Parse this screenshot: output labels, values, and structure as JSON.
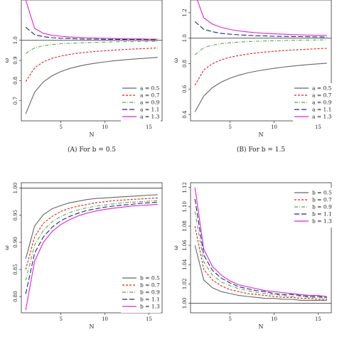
{
  "chart_data": [
    {
      "id": "A",
      "type": "line",
      "caption": "(A) For b = 0.5",
      "xlabel": "N",
      "ylabel": "ω",
      "xlim": [
        0.5,
        16.5
      ],
      "ylim": [
        0.6,
        1.2
      ],
      "xticks": [
        5,
        10,
        15
      ],
      "yticks": [
        0.7,
        0.8,
        0.9,
        1.0
      ],
      "ytick_labels": [
        "0.7",
        "0.8",
        "0.9",
        "1.0"
      ],
      "hline": 1.0,
      "legend": "bottom-right",
      "x": [
        1,
        2,
        3,
        4,
        5,
        6,
        7,
        8,
        9,
        10,
        11,
        12,
        13,
        14,
        15,
        16
      ],
      "series": [
        {
          "name": "a = 0.5",
          "color": "#666666",
          "dash": "solid",
          "values": [
            0.635,
            0.742,
            0.793,
            0.824,
            0.845,
            0.86,
            0.871,
            0.88,
            0.887,
            0.893,
            0.898,
            0.902,
            0.906,
            0.909,
            0.912,
            0.915
          ]
        },
        {
          "name": "a = 0.7",
          "color": "#e41a1c",
          "dash": "dashed",
          "values": [
            0.795,
            0.863,
            0.893,
            0.911,
            0.922,
            0.93,
            0.936,
            0.941,
            0.945,
            0.948,
            0.951,
            0.954,
            0.956,
            0.958,
            0.96,
            0.962
          ]
        },
        {
          "name": "a = 0.9",
          "color": "#4daf4a",
          "dash": "dotdash",
          "values": [
            0.935,
            0.962,
            0.973,
            0.979,
            0.983,
            0.985,
            0.987,
            0.989,
            0.99,
            0.991,
            0.992,
            0.993,
            0.993,
            0.994,
            0.994,
            0.995
          ]
        },
        {
          "name": "a = 1.1",
          "color": "#1f2a7a",
          "dash": "longdash",
          "values": [
            1.065,
            1.028,
            1.018,
            1.013,
            1.01,
            1.009,
            1.007,
            1.006,
            1.006,
            1.005,
            1.005,
            1.004,
            1.004,
            1.004,
            1.003,
            1.003
          ]
        },
        {
          "name": "a = 1.3",
          "color": "#e020e0",
          "dash": "solid",
          "values": [
            1.2,
            1.06,
            1.035,
            1.025,
            1.02,
            1.016,
            1.014,
            1.012,
            1.011,
            1.01,
            1.009,
            1.008,
            1.007,
            1.007,
            1.006,
            1.006
          ]
        }
      ]
    },
    {
      "id": "B",
      "type": "line",
      "caption": "(B) For b = 1.5",
      "xlabel": "N",
      "ylabel": "ω",
      "xlim": [
        0.5,
        16.5
      ],
      "ylim": [
        0.35,
        1.3
      ],
      "xticks": [
        5,
        10,
        15
      ],
      "yticks": [
        0.4,
        0.6,
        0.8,
        1.0,
        1.2
      ],
      "ytick_labels": [
        "0.4",
        "0.6",
        "0.8",
        "1.0",
        "1.2"
      ],
      "hline": 1.0,
      "legend": "bottom-right",
      "x": [
        1,
        2,
        3,
        4,
        5,
        6,
        7,
        8,
        9,
        10,
        11,
        12,
        13,
        14,
        15,
        16
      ],
      "series": [
        {
          "name": "a = 0.5",
          "color": "#666666",
          "dash": "solid",
          "values": [
            0.42,
            0.545,
            0.612,
            0.655,
            0.686,
            0.709,
            0.727,
            0.741,
            0.753,
            0.763,
            0.772,
            0.78,
            0.787,
            0.793,
            0.798,
            0.803
          ]
        },
        {
          "name": "a = 0.7",
          "color": "#e41a1c",
          "dash": "dashed",
          "values": [
            0.63,
            0.75,
            0.8,
            0.83,
            0.85,
            0.864,
            0.875,
            0.884,
            0.891,
            0.897,
            0.902,
            0.906,
            0.91,
            0.914,
            0.917,
            0.92
          ]
        },
        {
          "name": "a = 0.9",
          "color": "#4daf4a",
          "dash": "dotdash",
          "values": [
            0.87,
            0.925,
            0.945,
            0.957,
            0.964,
            0.969,
            0.973,
            0.976,
            0.978,
            0.98,
            0.982,
            0.983,
            0.984,
            0.985,
            0.986,
            0.987
          ]
        },
        {
          "name": "a = 1.1",
          "color": "#1f2a7a",
          "dash": "longdash",
          "values": [
            1.13,
            1.07,
            1.05,
            1.038,
            1.031,
            1.026,
            1.022,
            1.019,
            1.017,
            1.015,
            1.014,
            1.013,
            1.012,
            1.011,
            1.01,
            1.009
          ]
        },
        {
          "name": "a = 1.3",
          "color": "#e020e0",
          "dash": "solid",
          "values": [
            1.35,
            1.16,
            1.11,
            1.085,
            1.068,
            1.057,
            1.049,
            1.043,
            1.038,
            1.034,
            1.031,
            1.028,
            1.026,
            1.024,
            1.022,
            1.021
          ]
        }
      ]
    },
    {
      "id": "C",
      "type": "line",
      "caption": "",
      "xlabel": "N",
      "ylabel": "ω",
      "xlim": [
        0.5,
        16.5
      ],
      "ylim": [
        0.77,
        1.01
      ],
      "xticks": [
        5,
        10,
        15
      ],
      "yticks": [
        0.8,
        0.85,
        0.9,
        0.95,
        1.0
      ],
      "ytick_labels": [
        "0.80",
        "0.85",
        "0.90",
        "0.95",
        "1.00"
      ],
      "hline": 1.0,
      "legend": "bottom-right",
      "x": [
        1,
        2,
        3,
        4,
        5,
        6,
        7,
        8,
        9,
        10,
        11,
        12,
        13,
        14,
        15,
        16
      ],
      "series": [
        {
          "name": "b = 0.5",
          "color": "#666666",
          "dash": "solid",
          "values": [
            0.87,
            0.93,
            0.951,
            0.962,
            0.968,
            0.973,
            0.976,
            0.979,
            0.981,
            0.982,
            0.983,
            0.984,
            0.985,
            0.986,
            0.987,
            0.988
          ]
        },
        {
          "name": "b = 0.7",
          "color": "#e41a1c",
          "dash": "dashed",
          "values": [
            0.85,
            0.91,
            0.935,
            0.948,
            0.957,
            0.963,
            0.967,
            0.97,
            0.973,
            0.975,
            0.977,
            0.978,
            0.979,
            0.98,
            0.981,
            0.982
          ]
        },
        {
          "name": "b = 0.9",
          "color": "#4daf4a",
          "dash": "dotdash",
          "values": [
            0.83,
            0.895,
            0.922,
            0.938,
            0.948,
            0.955,
            0.96,
            0.964,
            0.967,
            0.969,
            0.971,
            0.973,
            0.974,
            0.975,
            0.976,
            0.977
          ]
        },
        {
          "name": "b = 1.1",
          "color": "#1f2a7a",
          "dash": "longdash",
          "values": [
            0.805,
            0.88,
            0.91,
            0.928,
            0.94,
            0.948,
            0.954,
            0.959,
            0.962,
            0.965,
            0.967,
            0.969,
            0.97,
            0.972,
            0.973,
            0.974
          ]
        },
        {
          "name": "b = 1.3",
          "color": "#e020e0",
          "dash": "solid",
          "values": [
            0.775,
            0.865,
            0.9,
            0.92,
            0.933,
            0.942,
            0.949,
            0.954,
            0.958,
            0.961,
            0.963,
            0.965,
            0.967,
            0.968,
            0.969,
            0.97
          ]
        }
      ]
    },
    {
      "id": "D",
      "type": "line",
      "caption": "",
      "xlabel": "N",
      "ylabel": "ω",
      "xlim": [
        0.5,
        16.5
      ],
      "ylim": [
        0.99,
        1.125
      ],
      "xticks": [
        5,
        10,
        15
      ],
      "yticks": [
        1.0,
        1.02,
        1.04,
        1.06,
        1.08,
        1.1,
        1.12
      ],
      "ytick_labels": [
        "1.00",
        "1.02",
        "1.04",
        "1.06",
        "1.08",
        "1.10",
        "1.12"
      ],
      "hline": 1.0,
      "legend": "top-right",
      "x": [
        1,
        2,
        3,
        4,
        5,
        6,
        7,
        8,
        9,
        10,
        11,
        12,
        13,
        14,
        15,
        16
      ],
      "series": [
        {
          "name": "b = 0.5",
          "color": "#666666",
          "dash": "solid",
          "values": [
            1.06,
            1.024,
            1.016,
            1.012,
            1.01,
            1.008,
            1.007,
            1.006,
            1.005,
            1.005,
            1.004,
            1.004,
            1.003,
            1.003,
            1.003,
            1.003
          ]
        },
        {
          "name": "b = 0.7",
          "color": "#e41a1c",
          "dash": "dashed",
          "values": [
            1.08,
            1.035,
            1.024,
            1.018,
            1.014,
            1.012,
            1.01,
            1.009,
            1.008,
            1.007,
            1.006,
            1.006,
            1.005,
            1.005,
            1.004,
            1.004
          ]
        },
        {
          "name": "b = 0.9",
          "color": "#4daf4a",
          "dash": "dotdash",
          "values": [
            1.095,
            1.043,
            1.029,
            1.022,
            1.018,
            1.015,
            1.013,
            1.011,
            1.01,
            1.009,
            1.008,
            1.007,
            1.007,
            1.006,
            1.006,
            1.005
          ]
        },
        {
          "name": "b = 1.1",
          "color": "#1f2a7a",
          "dash": "longdash",
          "values": [
            1.108,
            1.05,
            1.034,
            1.026,
            1.021,
            1.017,
            1.015,
            1.013,
            1.012,
            1.01,
            1.009,
            1.009,
            1.008,
            1.007,
            1.007,
            1.006
          ]
        },
        {
          "name": "b = 1.3",
          "color": "#e020e0",
          "dash": "solid",
          "values": [
            1.12,
            1.056,
            1.038,
            1.029,
            1.023,
            1.019,
            1.017,
            1.015,
            1.013,
            1.012,
            1.011,
            1.01,
            1.009,
            1.008,
            1.008,
            1.007
          ]
        }
      ]
    }
  ]
}
